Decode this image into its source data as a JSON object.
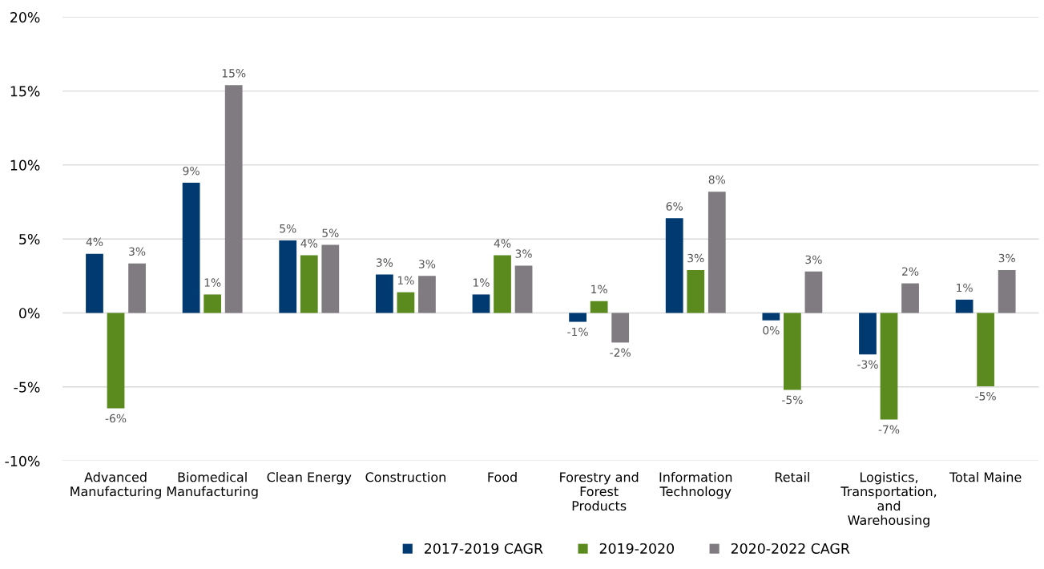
{
  "chart_data": {
    "type": "bar",
    "categories": [
      "Advanced\nManufacturing",
      "Biomedical\nManufacturing",
      "Clean Energy",
      "Construction",
      "Food",
      "Forestry and\nForest\nProducts",
      "Information\nTechnology",
      "Retail",
      "Logistics,\nTransportation,\nand\nWarehousing",
      "Total Maine"
    ],
    "series": [
      {
        "name": "2017-2019 CAGR",
        "color": "#003a70",
        "values": [
          4.0,
          8.8,
          4.9,
          2.6,
          1.25,
          -0.6,
          6.4,
          -0.5,
          -2.8,
          0.9
        ],
        "value_labels": [
          "4%",
          "9%",
          "5%",
          "3%",
          "1%",
          "-1%",
          "6%",
          "0%",
          "-3%",
          "1%"
        ]
      },
      {
        "name": "2019-2020",
        "color": "#5b8a1e",
        "values": [
          -6.45,
          1.25,
          3.9,
          1.4,
          3.9,
          0.8,
          2.9,
          -5.2,
          -7.2,
          -4.95
        ],
        "value_labels": [
          "-6%",
          "1%",
          "4%",
          "1%",
          "4%",
          "1%",
          "3%",
          "-5%",
          "-7%",
          "-5%"
        ]
      },
      {
        "name": "2020-2022 CAGR",
        "color": "#7f7b80",
        "values": [
          3.35,
          15.4,
          4.6,
          2.5,
          3.2,
          -2.0,
          8.2,
          2.8,
          2.0,
          2.9
        ],
        "value_labels": [
          "3%",
          "15%",
          "5%",
          "3%",
          "3%",
          "-2%",
          "8%",
          "3%",
          "2%",
          "3%"
        ]
      }
    ],
    "ylim": [
      -10,
      20
    ],
    "yticks": [
      {
        "value": -10,
        "label": "-10%"
      },
      {
        "value": -5,
        "label": "-5%"
      },
      {
        "value": 0,
        "label": "0%"
      },
      {
        "value": 5,
        "label": "5%"
      },
      {
        "value": 10,
        "label": "10%"
      },
      {
        "value": 15,
        "label": "15%"
      },
      {
        "value": 20,
        "label": "20%"
      }
    ],
    "grid": "y",
    "legend": "bottom"
  }
}
